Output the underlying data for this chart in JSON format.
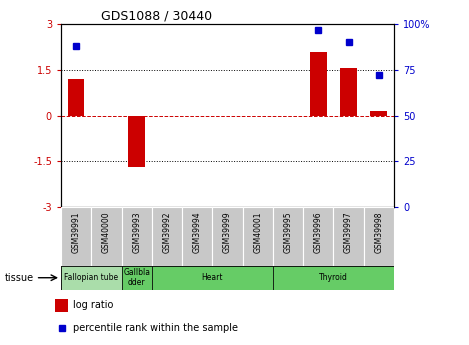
{
  "title": "GDS1088 / 30440",
  "samples": [
    "GSM39991",
    "GSM40000",
    "GSM39993",
    "GSM39992",
    "GSM39994",
    "GSM39999",
    "GSM40001",
    "GSM39995",
    "GSM39996",
    "GSM39997",
    "GSM39998"
  ],
  "log_ratios": [
    1.2,
    0.0,
    -1.7,
    0.0,
    0.0,
    0.0,
    0.0,
    0.0,
    2.1,
    1.55,
    0.15
  ],
  "percentile_ranks": [
    88,
    null,
    null,
    null,
    null,
    null,
    null,
    null,
    97,
    90,
    72
  ],
  "tissues": [
    {
      "label": "Fallopian tube",
      "start": 0,
      "end": 2,
      "color": "#aaddaa"
    },
    {
      "label": "Gallbla\ndder",
      "start": 2,
      "end": 3,
      "color": "#66cc66"
    },
    {
      "label": "Heart",
      "start": 3,
      "end": 7,
      "color": "#66cc66"
    },
    {
      "label": "Thyroid",
      "start": 7,
      "end": 11,
      "color": "#66cc66"
    }
  ],
  "ylim_left": [
    -3,
    3
  ],
  "ylim_right": [
    0,
    100
  ],
  "y_ticks_left": [
    -3,
    -1.5,
    0,
    1.5,
    3
  ],
  "y_ticks_right": [
    0,
    25,
    50,
    75,
    100
  ],
  "bar_color": "#CC0000",
  "dot_color": "#0000CC",
  "hline_color": "#CC0000",
  "bg_color": "#ffffff",
  "sample_cell_color": "#c8c8c8",
  "sample_cell_edge": "#ffffff"
}
